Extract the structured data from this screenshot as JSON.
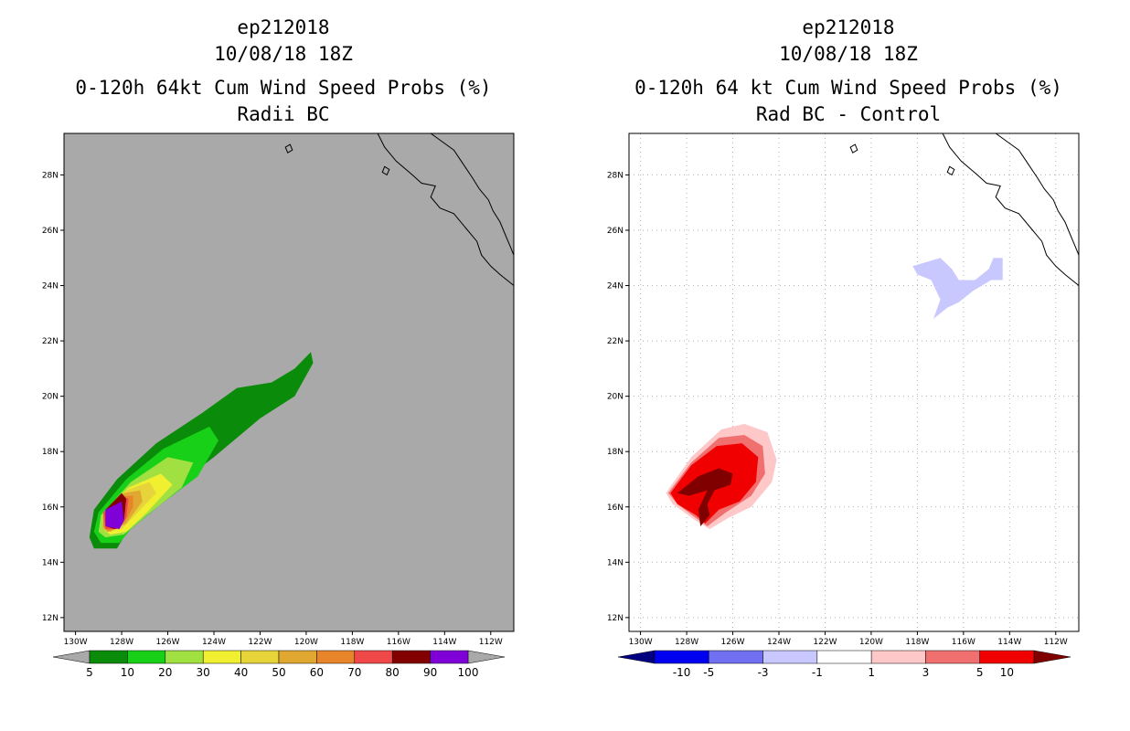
{
  "left_panel": {
    "title_lines": [
      "ep212018",
      "10/08/18 18Z",
      "0-120h 64kt Cum Wind Speed Probs (%)",
      "Radii BC"
    ]
  },
  "right_panel": {
    "title_lines": [
      "ep212018",
      "10/08/18 18Z",
      "0-120h 64 kt Cum Wind Speed Probs (%)",
      "Rad BC - Control"
    ]
  },
  "colors": {
    "land_bg": "#a9a9a9",
    "ocean_bg": "#ffffff",
    "coast": "#000000",
    "grid": "#b0b0b0"
  },
  "chart_data": [
    {
      "type": "filled-contour-map",
      "title": "0-120h 64kt Cum Wind Speed Probs (%) Radii BC",
      "storm": "ep212018",
      "init_time": "10/08/18 18Z",
      "units": "%",
      "lon_range": [
        -130.5,
        -111
      ],
      "lat_range": [
        11.5,
        29.5
      ],
      "x_ticks": [
        "130W",
        "128W",
        "126W",
        "124W",
        "122W",
        "120W",
        "118W",
        "116W",
        "114W",
        "112W"
      ],
      "y_ticks": [
        "28N",
        "26N",
        "24N",
        "22N",
        "20N",
        "18N",
        "16N",
        "14N",
        "12N"
      ],
      "grid": false,
      "colorbar": {
        "labels": [
          "5",
          "10",
          "20",
          "30",
          "40",
          "50",
          "60",
          "70",
          "80",
          "90",
          "100"
        ],
        "colors": [
          "#0a8c0a",
          "#18d018",
          "#a0e040",
          "#f0f030",
          "#e6d43a",
          "#e0a830",
          "#e8842a",
          "#f04848",
          "#820000",
          "#8000d8"
        ],
        "end_colors": [
          "#a9a9a9",
          "#a9a9a9"
        ]
      },
      "contours": [
        {
          "level": 5,
          "color": "#0a8c0a",
          "polygon": [
            [
              -129.2,
              15.9
            ],
            [
              -128.2,
              17.0
            ],
            [
              -126.5,
              18.3
            ],
            [
              -124.5,
              19.4
            ],
            [
              -123.0,
              20.3
            ],
            [
              -121.5,
              20.5
            ],
            [
              -120.5,
              21.0
            ],
            [
              -119.8,
              21.6
            ],
            [
              -119.7,
              21.2
            ],
            [
              -120.5,
              20.0
            ],
            [
              -122.0,
              19.2
            ],
            [
              -124.0,
              17.8
            ],
            [
              -126.2,
              16.4
            ],
            [
              -127.7,
              15.2
            ],
            [
              -128.2,
              14.5
            ],
            [
              -129.2,
              14.5
            ],
            [
              -129.4,
              14.9
            ]
          ]
        },
        {
          "level": 10,
          "color": "#18d018",
          "polygon": [
            [
              -129.0,
              15.8
            ],
            [
              -127.8,
              17.0
            ],
            [
              -126.2,
              18.1
            ],
            [
              -124.2,
              18.9
            ],
            [
              -123.8,
              18.4
            ],
            [
              -124.7,
              17.1
            ],
            [
              -126.3,
              16.1
            ],
            [
              -127.6,
              15.2
            ],
            [
              -128.1,
              14.7
            ],
            [
              -128.9,
              14.7
            ],
            [
              -129.2,
              15.1
            ]
          ]
        },
        {
          "level": 20,
          "color": "#a0e040",
          "polygon": [
            [
              -128.9,
              15.7
            ],
            [
              -127.6,
              16.9
            ],
            [
              -126.0,
              17.8
            ],
            [
              -124.9,
              17.6
            ],
            [
              -125.4,
              16.7
            ],
            [
              -126.9,
              15.7
            ],
            [
              -127.9,
              15.0
            ],
            [
              -128.7,
              14.9
            ],
            [
              -129.0,
              15.1
            ]
          ]
        },
        {
          "level": 30,
          "color": "#f0f030",
          "polygon": [
            [
              -128.8,
              15.8
            ],
            [
              -127.7,
              16.7
            ],
            [
              -126.3,
              17.2
            ],
            [
              -125.8,
              16.8
            ],
            [
              -126.9,
              15.8
            ],
            [
              -127.8,
              15.1
            ],
            [
              -128.5,
              15.0
            ],
            [
              -128.8,
              15.2
            ]
          ]
        },
        {
          "level": 40,
          "color": "#e6d43a",
          "polygon": [
            [
              -128.8,
              15.8
            ],
            [
              -127.8,
              16.6
            ],
            [
              -126.8,
              16.9
            ],
            [
              -126.5,
              16.5
            ],
            [
              -127.3,
              15.8
            ],
            [
              -128.0,
              15.2
            ],
            [
              -128.7,
              15.1
            ]
          ]
        },
        {
          "level": 50,
          "color": "#e0a830",
          "polygon": [
            [
              -128.8,
              15.8
            ],
            [
              -127.9,
              16.5
            ],
            [
              -127.2,
              16.6
            ],
            [
              -127.1,
              16.2
            ],
            [
              -127.8,
              15.4
            ],
            [
              -128.5,
              15.1
            ],
            [
              -128.8,
              15.2
            ]
          ]
        },
        {
          "level": 60,
          "color": "#e8842a",
          "polygon": [
            [
              -128.8,
              15.8
            ],
            [
              -128.0,
              16.4
            ],
            [
              -127.5,
              16.4
            ],
            [
              -127.5,
              16.0
            ],
            [
              -127.9,
              15.4
            ],
            [
              -128.6,
              15.1
            ],
            [
              -128.8,
              15.3
            ]
          ]
        },
        {
          "level": 70,
          "color": "#f04848",
          "polygon": [
            [
              -128.8,
              15.8
            ],
            [
              -128.1,
              16.4
            ],
            [
              -127.7,
              16.3
            ],
            [
              -127.8,
              15.6
            ],
            [
              -128.2,
              15.2
            ],
            [
              -128.7,
              15.2
            ]
          ]
        },
        {
          "level": 80,
          "color": "#820000",
          "polygon": [
            [
              -128.7,
              15.9
            ],
            [
              -128.0,
              16.5
            ],
            [
              -127.8,
              16.3
            ],
            [
              -127.9,
              15.5
            ],
            [
              -128.3,
              15.2
            ],
            [
              -128.7,
              15.3
            ]
          ]
        },
        {
          "level": 90,
          "color": "#8000d8",
          "polygon": [
            [
              -128.7,
              15.9
            ],
            [
              -128.0,
              16.2
            ],
            [
              -127.9,
              15.5
            ],
            [
              -128.1,
              15.2
            ],
            [
              -128.7,
              15.3
            ]
          ]
        }
      ]
    },
    {
      "type": "filled-contour-map",
      "title": "0-120h 64 kt Cum Wind Speed Probs (%) Rad BC - Control",
      "storm": "ep212018",
      "init_time": "10/08/18 18Z",
      "units": "%",
      "lon_range": [
        -130.5,
        -111
      ],
      "lat_range": [
        11.5,
        29.5
      ],
      "x_ticks": [
        "130W",
        "128W",
        "126W",
        "124W",
        "122W",
        "120W",
        "118W",
        "116W",
        "114W",
        "112W"
      ],
      "y_ticks": [
        "28N",
        "26N",
        "24N",
        "22N",
        "20N",
        "18N",
        "16N",
        "14N",
        "12N"
      ],
      "grid": true,
      "colorbar": {
        "labels": [
          "-10",
          "-5",
          "-3",
          "-1",
          "1",
          "3",
          "5",
          "10"
        ],
        "colors": [
          "#0000f0",
          "#7070f0",
          "#c8c8ff",
          "#ffffff",
          "#ffc8c8",
          "#f07070",
          "#f00000"
        ],
        "end_colors": [
          "#000080",
          "#800000"
        ]
      },
      "contours": [
        {
          "level": 1,
          "color": "#ffc8c8",
          "polygon": [
            [
              -128.9,
              16.5
            ],
            [
              -127.8,
              17.8
            ],
            [
              -126.5,
              18.8
            ],
            [
              -125.5,
              19.0
            ],
            [
              -124.5,
              18.7
            ],
            [
              -124.1,
              17.7
            ],
            [
              -124.3,
              16.9
            ],
            [
              -125.2,
              16.0
            ],
            [
              -126.2,
              15.6
            ],
            [
              -127.0,
              15.2
            ],
            [
              -127.6,
              15.5
            ],
            [
              -128.6,
              16.1
            ]
          ]
        },
        {
          "level": 3,
          "color": "#f07070",
          "polygon": [
            [
              -128.8,
              16.5
            ],
            [
              -127.8,
              17.6
            ],
            [
              -126.6,
              18.5
            ],
            [
              -125.5,
              18.6
            ],
            [
              -124.7,
              18.2
            ],
            [
              -124.6,
              17.2
            ],
            [
              -125.2,
              16.4
            ],
            [
              -126.3,
              15.8
            ],
            [
              -127.1,
              15.3
            ],
            [
              -127.6,
              15.6
            ],
            [
              -128.4,
              16.1
            ]
          ]
        },
        {
          "level": 5,
          "color": "#f00000",
          "polygon": [
            [
              -128.7,
              16.5
            ],
            [
              -127.8,
              17.5
            ],
            [
              -126.7,
              18.2
            ],
            [
              -125.6,
              18.3
            ],
            [
              -124.9,
              17.8
            ],
            [
              -125.0,
              16.9
            ],
            [
              -125.7,
              16.2
            ],
            [
              -126.6,
              15.9
            ],
            [
              -127.2,
              15.4
            ],
            [
              -127.6,
              15.7
            ],
            [
              -128.4,
              16.1
            ]
          ]
        },
        {
          "level": 10,
          "color": "#800000",
          "polygon": [
            [
              -128.4,
              16.5
            ],
            [
              -127.5,
              17.1
            ],
            [
              -126.6,
              17.4
            ],
            [
              -126.0,
              17.2
            ],
            [
              -126.1,
              16.8
            ],
            [
              -126.8,
              16.6
            ],
            [
              -127.1,
              16.1
            ],
            [
              -127.0,
              15.7
            ],
            [
              -127.4,
              15.3
            ],
            [
              -127.5,
              15.9
            ],
            [
              -127.1,
              16.6
            ],
            [
              -127.9,
              16.4
            ]
          ]
        },
        {
          "level": -1,
          "color": "#c8c8ff",
          "polygon": [
            [
              -118.2,
              24.7
            ],
            [
              -117.0,
              25.0
            ],
            [
              -116.5,
              24.6
            ],
            [
              -116.2,
              24.2
            ],
            [
              -115.5,
              24.2
            ],
            [
              -114.9,
              24.6
            ],
            [
              -114.7,
              25.0
            ],
            [
              -114.3,
              25.0
            ],
            [
              -114.3,
              24.2
            ],
            [
              -114.8,
              24.2
            ],
            [
              -115.6,
              23.8
            ],
            [
              -116.2,
              23.4
            ],
            [
              -116.7,
              23.2
            ],
            [
              -117.3,
              22.8
            ],
            [
              -117.0,
              23.5
            ],
            [
              -117.4,
              24.2
            ],
            [
              -118.0,
              24.4
            ]
          ]
        }
      ]
    }
  ]
}
